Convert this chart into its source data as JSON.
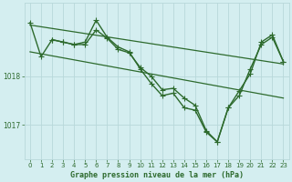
{
  "background_color": "#d4eef0",
  "grid_color": "#b8d8da",
  "line_color": "#2d6a2d",
  "title": "Graphe pression niveau de la mer (hPa)",
  "xlim": [
    -0.5,
    23.5
  ],
  "ylim": [
    1016.3,
    1019.5
  ],
  "yticks": [
    1017,
    1018
  ],
  "xticks": [
    0,
    1,
    2,
    3,
    4,
    5,
    6,
    7,
    8,
    9,
    10,
    11,
    12,
    13,
    14,
    15,
    16,
    17,
    18,
    19,
    20,
    21,
    22,
    23
  ],
  "series": [
    {
      "x": [
        0,
        1,
        2,
        3,
        4,
        5,
        6,
        7,
        8,
        9,
        10,
        11,
        12,
        13,
        14,
        15,
        16,
        17,
        18,
        19,
        20,
        21,
        22,
        23
      ],
      "y": [
        1019.1,
        1018.4,
        1018.75,
        1018.7,
        1018.65,
        1018.7,
        1019.15,
        1018.8,
        1018.6,
        1018.5,
        1018.15,
        1017.85,
        1017.6,
        1017.65,
        1017.35,
        1017.3,
        1016.85,
        1016.65,
        1017.35,
        1017.6,
        1018.15,
        1018.65,
        1018.8,
        1018.3
      ],
      "marker": "+",
      "linestyle": "-",
      "linewidth": 1.0,
      "markersize": 4
    },
    {
      "x": [
        0,
        23
      ],
      "y": [
        1019.05,
        1018.25
      ],
      "marker": null,
      "linestyle": "-",
      "linewidth": 0.9,
      "markersize": 0
    },
    {
      "x": [
        0,
        23
      ],
      "y": [
        1018.5,
        1017.55
      ],
      "marker": null,
      "linestyle": "-",
      "linewidth": 0.9,
      "markersize": 0
    },
    {
      "x": [
        2,
        3,
        4,
        5,
        6,
        7,
        8,
        9,
        10,
        11,
        12,
        13,
        14,
        15,
        16,
        17,
        18,
        19,
        20,
        21,
        22,
        23
      ],
      "y": [
        1018.75,
        1018.7,
        1018.65,
        1018.65,
        1018.95,
        1018.78,
        1018.55,
        1018.48,
        1018.18,
        1018.0,
        1017.72,
        1017.75,
        1017.55,
        1017.4,
        1016.88,
        1016.65,
        1017.35,
        1017.7,
        1018.05,
        1018.7,
        1018.85,
        1018.3
      ],
      "marker": "+",
      "linestyle": "-",
      "linewidth": 1.0,
      "markersize": 4
    }
  ]
}
